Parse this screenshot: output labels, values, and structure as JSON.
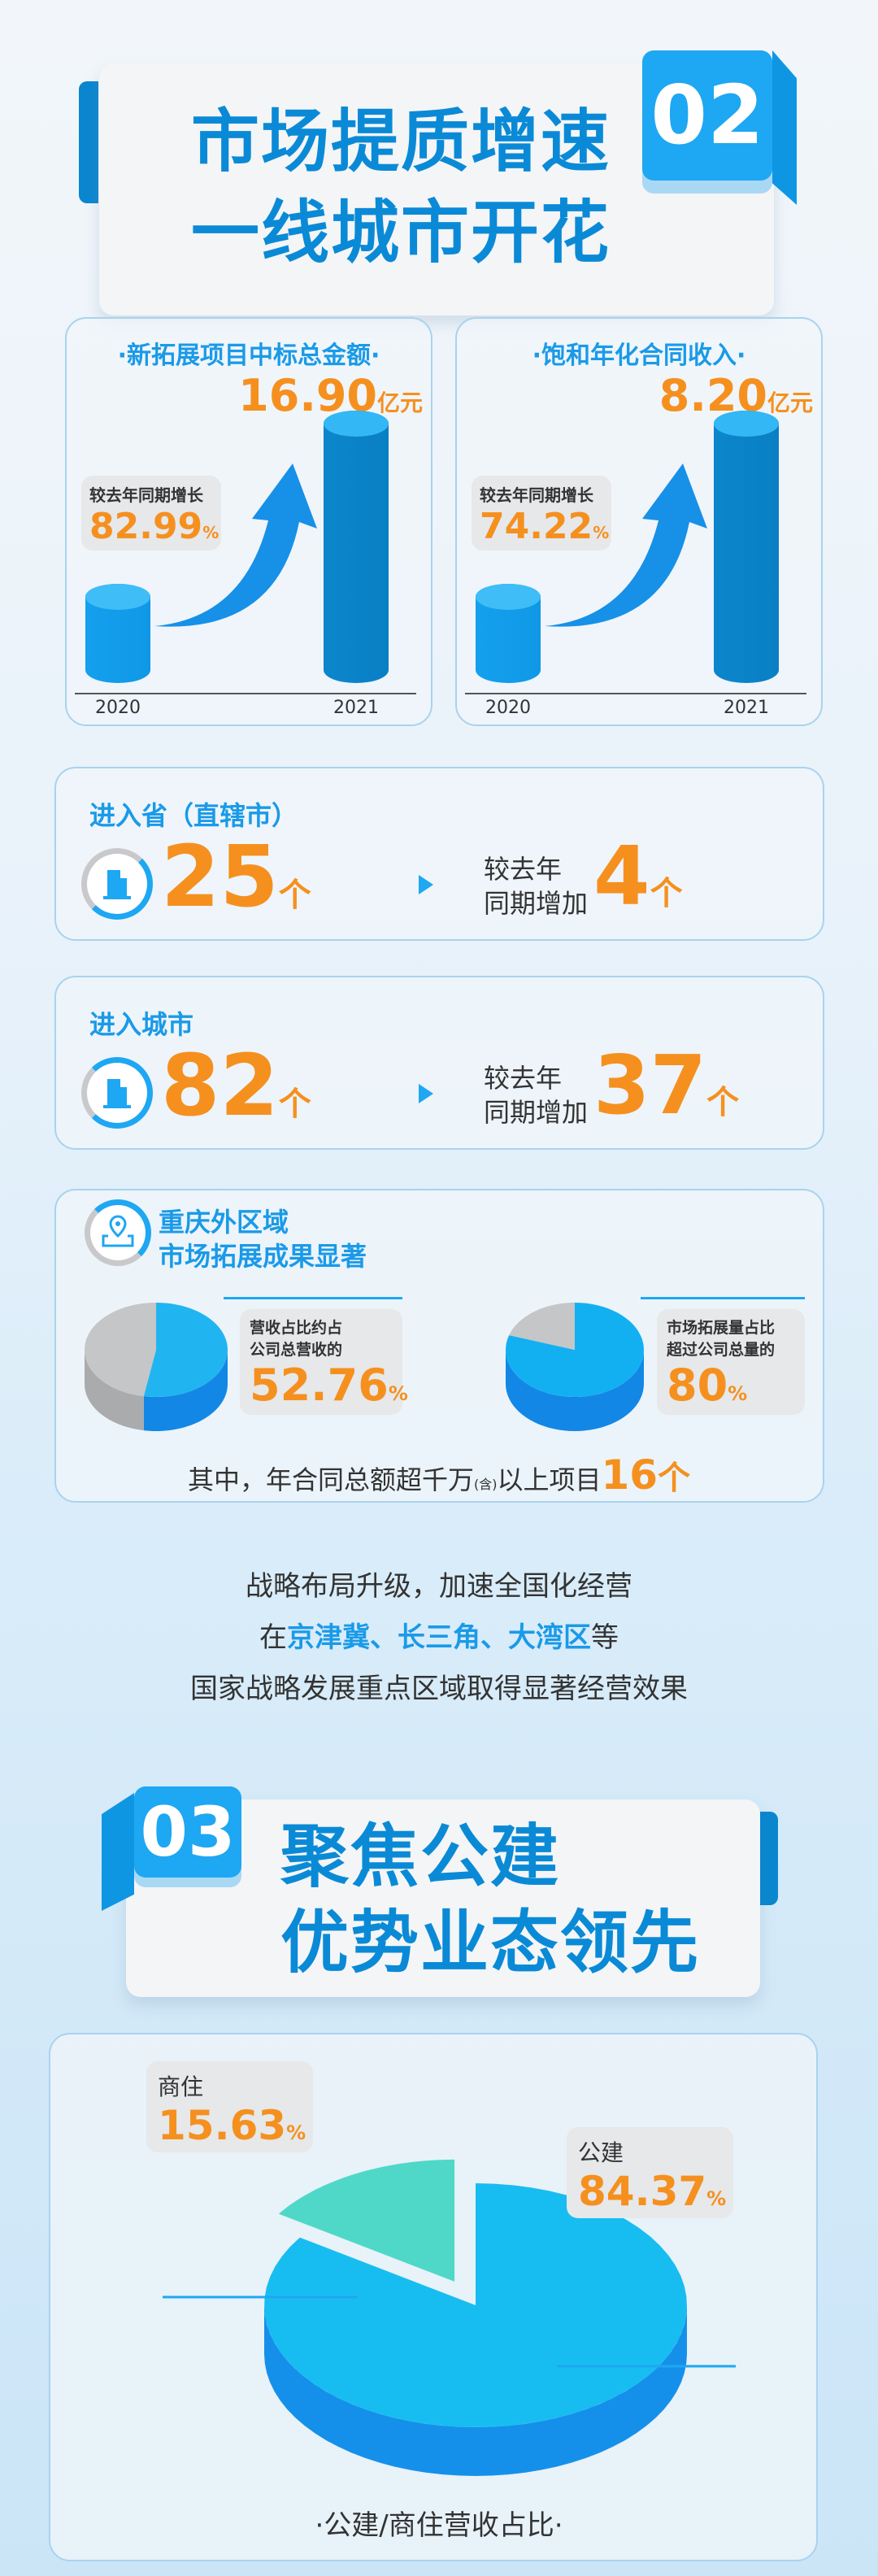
{
  "section02": {
    "badge": "02",
    "title_lines": [
      "市场提质增速",
      "一线城市开花"
    ]
  },
  "bar_cards": [
    {
      "title": "·新拓展项目中标总金额·",
      "value": "16.90",
      "unit": "亿元",
      "growth_label": "较去年同期增长",
      "growth_value": "82.99",
      "growth_unit": "%",
      "years": [
        "2020",
        "2021"
      ]
    },
    {
      "title": "·饱和年化合同收入·",
      "value": "8.20",
      "unit": "亿元",
      "growth_label": "较去年同期增长",
      "growth_value": "74.22",
      "growth_unit": "%",
      "years": [
        "2020",
        "2021"
      ]
    }
  ],
  "stats": [
    {
      "label": "进入省（直辖市）",
      "value": "25",
      "unit": "个",
      "compare": [
        "较去年",
        "同期增加"
      ],
      "delta": "4",
      "delta_unit": "个",
      "icon": "building-icon"
    },
    {
      "label": "进入城市",
      "value": "82",
      "unit": "个",
      "compare": [
        "较去年",
        "同期增加"
      ],
      "delta": "37",
      "delta_unit": "个",
      "icon": "city-icon"
    }
  ],
  "region": {
    "title_lines": [
      "重庆外区域",
      "市场拓展成果显著"
    ],
    "icon": "location-pin-icon",
    "pies": [
      {
        "text_lines": [
          "营收占比约占",
          "公司总营收的"
        ],
        "value": "52.76",
        "unit": "%"
      },
      {
        "text_lines": [
          "市场拓展量占比",
          "超过公司总量的"
        ],
        "value": "80",
        "unit": "%"
      }
    ],
    "footer": {
      "prefix": "其中，年合同总额超千万",
      "small": "(含)",
      "mid": "以上项目",
      "value": "16",
      "unit": "个"
    }
  },
  "summary": {
    "line1": "战略布局升级，加速全国化经营",
    "line2_pre": "在",
    "line2_highlight": "京津冀、长三角、大湾区",
    "line2_post": "等",
    "line3": "国家战略发展重点区域取得显著经营效果"
  },
  "section03": {
    "badge": "03",
    "title_lines": [
      "聚焦公建",
      "优势业态领先"
    ]
  },
  "share_chart": {
    "labels": [
      {
        "name": "商住",
        "value": "15.63",
        "unit": "%"
      },
      {
        "name": "公建",
        "value": "84.37",
        "unit": "%"
      }
    ],
    "caption": "·公建/商住营收占比·"
  },
  "colors": {
    "title_blue": "#0a8ad6",
    "accent_blue": "#1ea7f2",
    "orange": "#f5901f",
    "gray": "#c4c6c8"
  },
  "chart_data": [
    {
      "type": "bar",
      "title": "新拓展项目中标总金额",
      "categories": [
        "2020",
        "2021"
      ],
      "values": [
        null,
        16.9
      ],
      "unit": "亿元",
      "growth_pct": 82.99
    },
    {
      "type": "bar",
      "title": "饱和年化合同收入",
      "categories": [
        "2020",
        "2021"
      ],
      "values": [
        null,
        8.2
      ],
      "unit": "亿元",
      "growth_pct": 74.22
    },
    {
      "type": "pie",
      "title": "营收占比",
      "values": [
        52.76,
        47.24
      ]
    },
    {
      "type": "pie",
      "title": "市场拓展量占比",
      "values": [
        80,
        20
      ]
    },
    {
      "type": "pie",
      "title": "公建/商住营收占比",
      "categories": [
        "公建",
        "商住"
      ],
      "values": [
        84.37,
        15.63
      ]
    }
  ]
}
